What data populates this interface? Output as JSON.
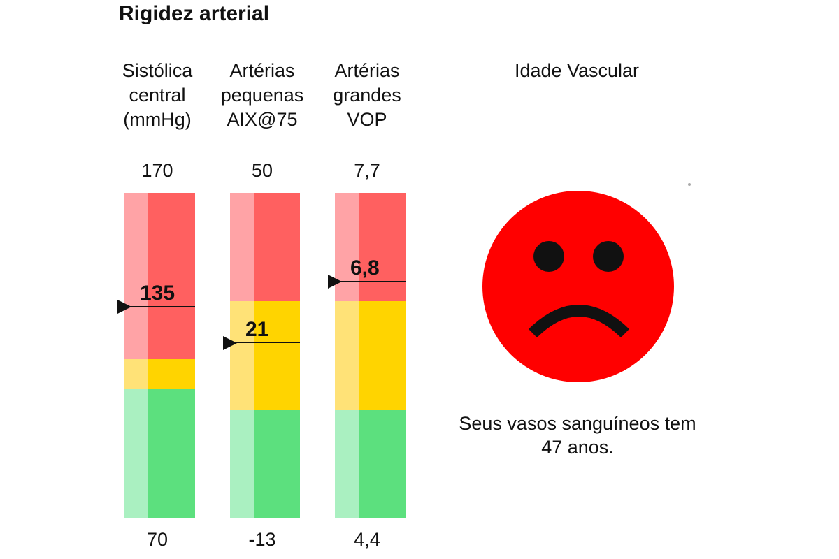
{
  "title": "Rigidez arterial",
  "chart_data": {
    "type": "gauge",
    "gauges": [
      {
        "name_lines": [
          "Sistólica",
          "central",
          "(mmHg)"
        ],
        "max_label": "170",
        "min_label": "70",
        "max": 170,
        "min": 70,
        "value": 135,
        "value_label": "135",
        "zones": [
          {
            "zone": "green",
            "from": 70,
            "to": 110
          },
          {
            "zone": "yellow",
            "from": 110,
            "to": 119
          },
          {
            "zone": "red",
            "from": 119,
            "to": 170
          }
        ]
      },
      {
        "name_lines": [
          "Artérias",
          "pequenas",
          "AIX@75"
        ],
        "max_label": "50",
        "min_label": "-13",
        "max": 50,
        "min": -13,
        "value": 21,
        "value_label": "21",
        "zones": [
          {
            "zone": "green",
            "from": -13,
            "to": 8
          },
          {
            "zone": "yellow",
            "from": 8,
            "to": 29
          },
          {
            "zone": "red",
            "from": 29,
            "to": 50
          }
        ]
      },
      {
        "name_lines": [
          "Artérias",
          "grandes",
          "VOP"
        ],
        "max_label": "7,7",
        "min_label": "4,4",
        "max": 7.7,
        "min": 4.4,
        "value": 6.8,
        "value_label": "6,8",
        "zones": [
          {
            "zone": "green",
            "from": 4.4,
            "to": 5.5
          },
          {
            "zone": "yellow",
            "from": 5.5,
            "to": 6.6
          },
          {
            "zone": "red",
            "from": 6.6,
            "to": 7.7
          }
        ]
      }
    ]
  },
  "vascular_age": {
    "title": "Idade Vascular",
    "face_icon": "sad-face-icon",
    "message_lines": [
      "Seus vasos sanguíneos tem",
      "47 anos."
    ]
  },
  "colors": {
    "red_dark": "#ff6060",
    "red_light": "#ffa3a6",
    "yellow_dark": "#ffd400",
    "yellow_light": "#ffe277",
    "green_dark": "#5ce07e",
    "green_light": "#aaf0c1",
    "face": "#ff0000",
    "face_features": "#111111"
  }
}
